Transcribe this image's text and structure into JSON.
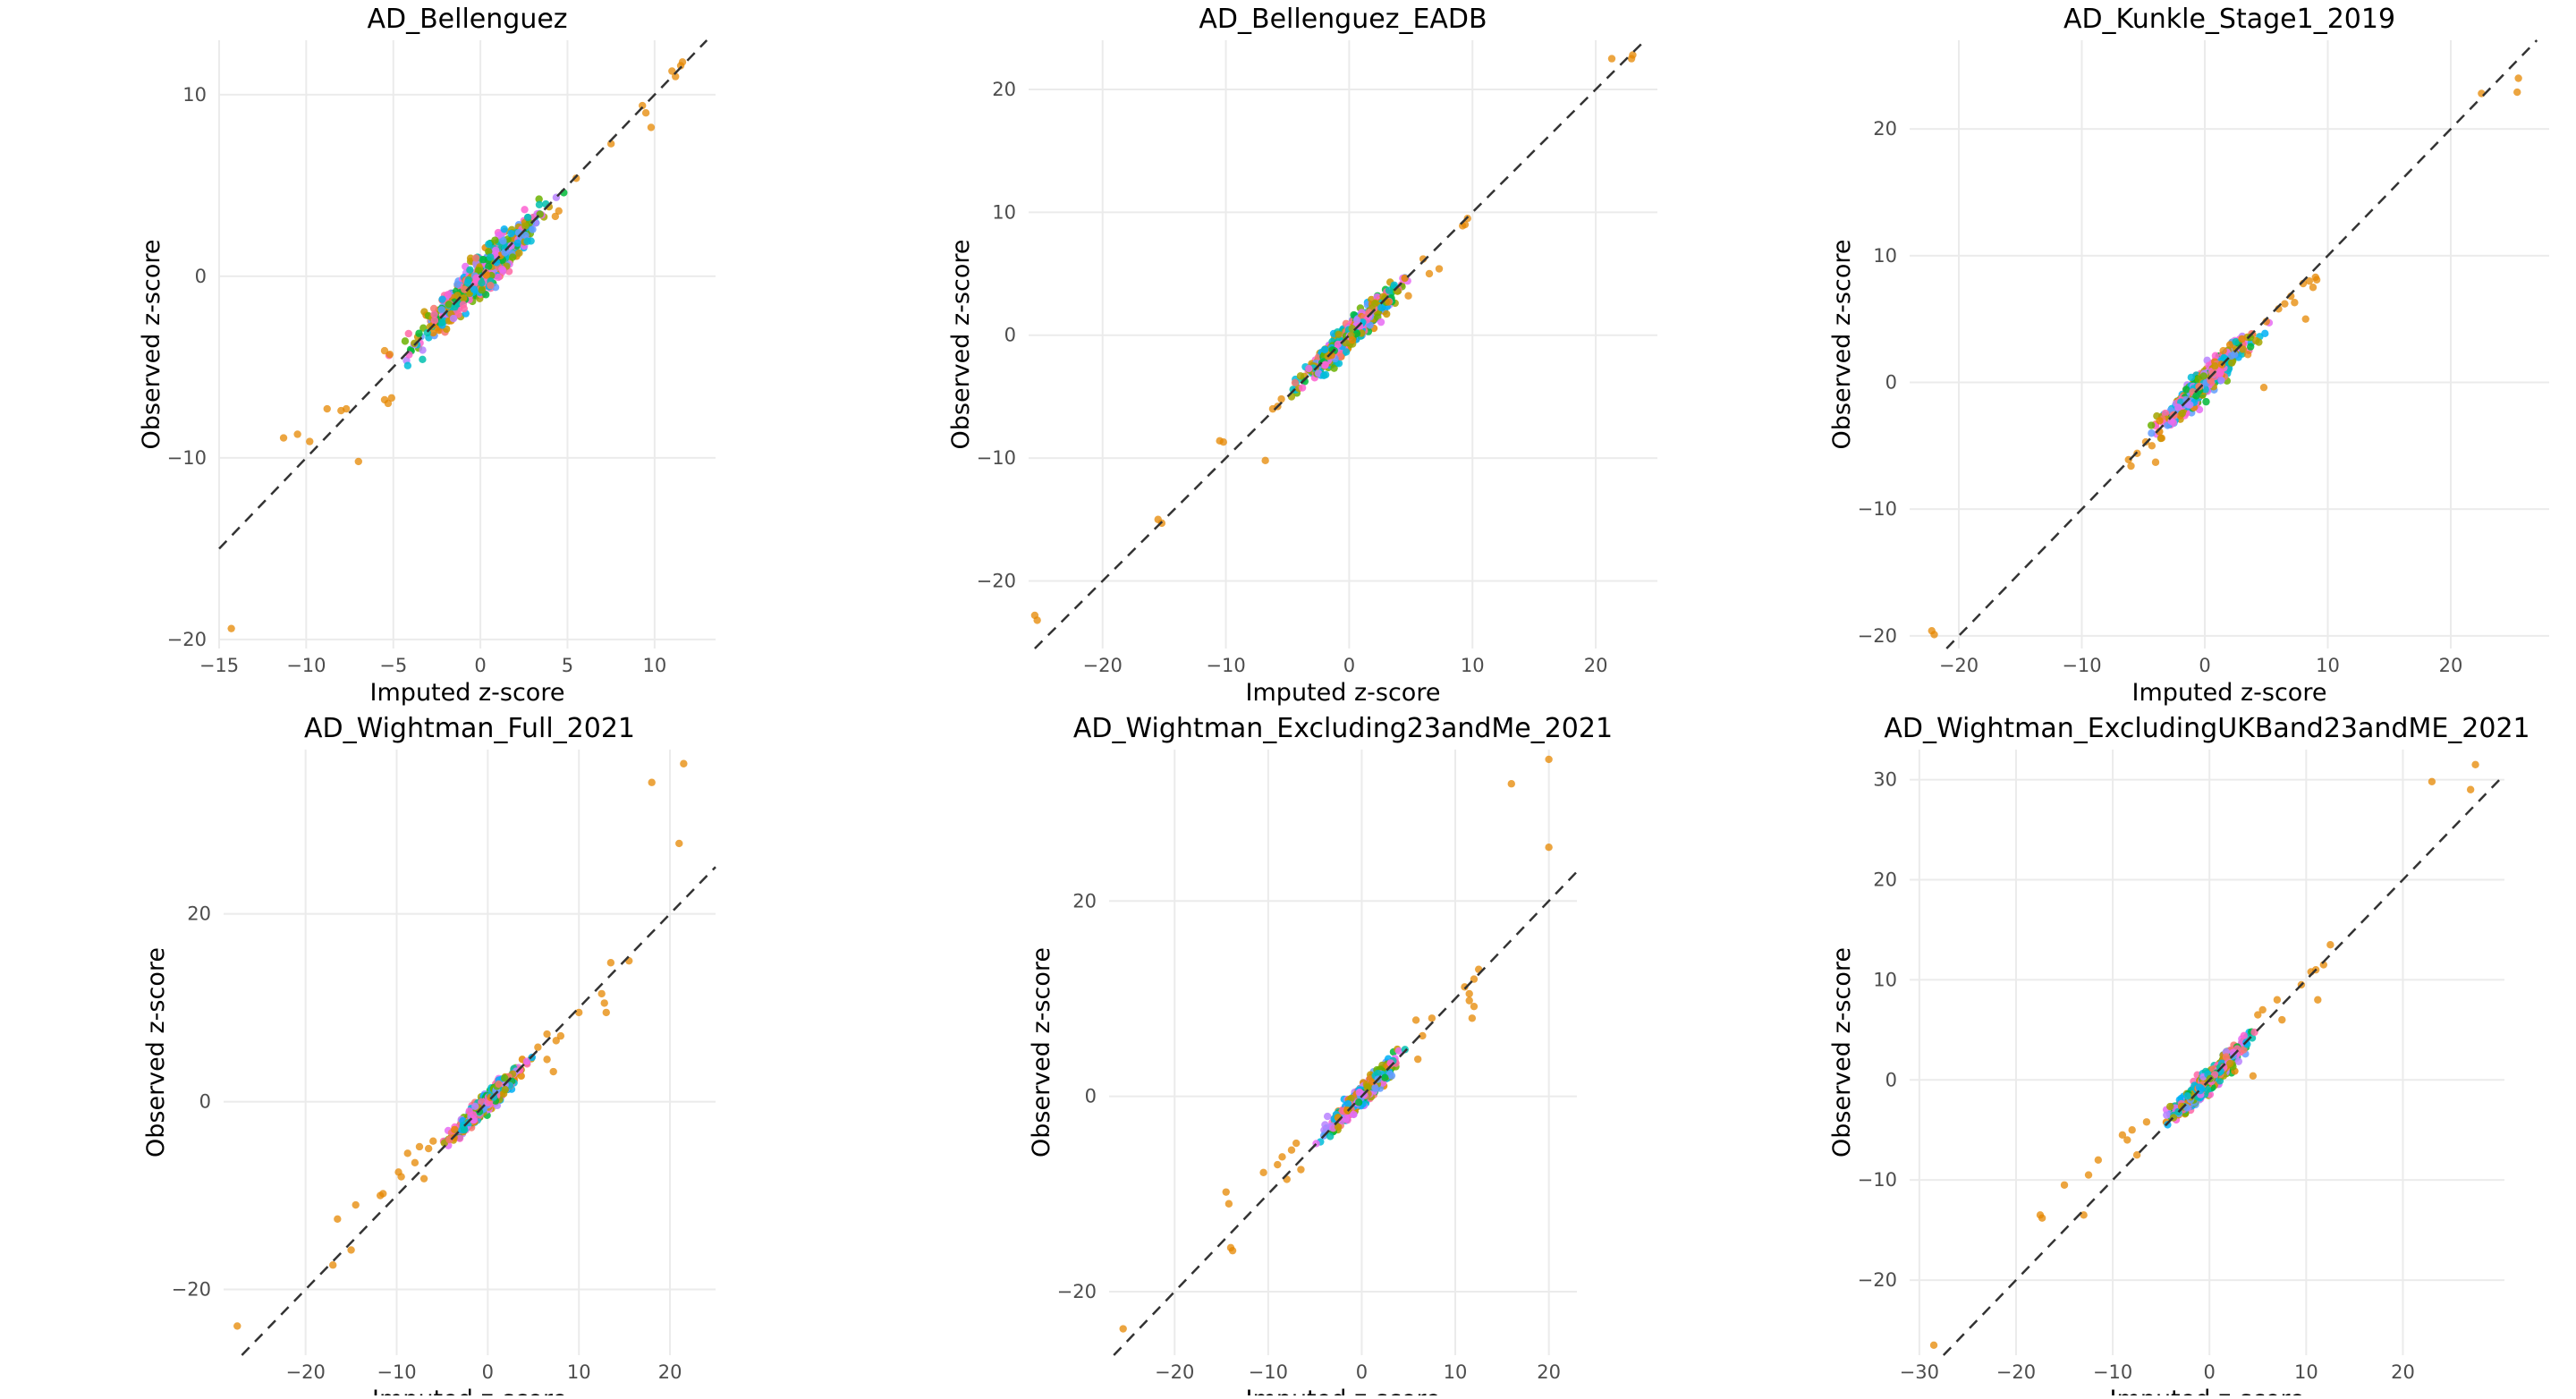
{
  "chart_data": [
    {
      "type": "scatter",
      "title": "AD_Bellenguez",
      "xlabel": "Imputed z-score",
      "ylabel": "Observed z-score",
      "xlim": [
        -15,
        13.5
      ],
      "ylim": [
        -20.5,
        13
      ],
      "xticks": [
        -15,
        -10,
        -5,
        0,
        5,
        10
      ],
      "yticks": [
        -20,
        -10,
        0,
        10
      ],
      "grid": true,
      "reference_line": "y = x (dashed)",
      "color_groups": [
        "#E58700",
        "#C99800",
        "#A3A500",
        "#6BB100",
        "#00BA38",
        "#00C0AF",
        "#00BCD8",
        "#00B0F6",
        "#619CFF",
        "#B983FF",
        "#E76BF3",
        "#FD61D1",
        "#FF67A4",
        "#F8766D"
      ],
      "outliers": [
        {
          "x": -14.3,
          "y": -19.4
        },
        {
          "x": -11.3,
          "y": -8.9
        },
        {
          "x": -10.5,
          "y": -8.7
        },
        {
          "x": -9.8,
          "y": -9.1
        },
        {
          "x": -8.8,
          "y": -7.3
        },
        {
          "x": -8.0,
          "y": -7.4
        },
        {
          "x": -7.7,
          "y": -7.3
        },
        {
          "x": -7.0,
          "y": -10.2
        },
        {
          "x": -5.5,
          "y": -6.8
        },
        {
          "x": -5.3,
          "y": -7.0
        },
        {
          "x": -5.1,
          "y": -6.7
        },
        {
          "x": -5.5,
          "y": -4.1
        },
        {
          "x": -5.2,
          "y": -4.3
        },
        {
          "x": 9.3,
          "y": 9.4
        },
        {
          "x": 9.5,
          "y": 9.0
        },
        {
          "x": 9.8,
          "y": 8.2
        },
        {
          "x": 7.5,
          "y": 7.3
        },
        {
          "x": 11.0,
          "y": 11.3
        },
        {
          "x": 11.5,
          "y": 11.6
        },
        {
          "x": 11.2,
          "y": 11.0
        },
        {
          "x": 11.6,
          "y": 11.8
        },
        {
          "x": 5.5,
          "y": 5.4
        },
        {
          "x": 4.5,
          "y": 3.6
        },
        {
          "x": 4.3,
          "y": 3.3
        }
      ]
    },
    {
      "type": "scatter",
      "title": "AD_Bellenguez_EADB",
      "xlabel": "Imputed z-score",
      "ylabel": "Observed z-score",
      "xlim": [
        -26,
        25
      ],
      "ylim": [
        -25.5,
        24
      ],
      "xticks": [
        -20,
        -10,
        0,
        10,
        20
      ],
      "yticks": [
        -20,
        -10,
        0,
        10,
        20
      ],
      "grid": true,
      "reference_line": "y = x (dashed)",
      "color_groups": [
        "#E58700",
        "#C99800",
        "#A3A500",
        "#6BB100",
        "#00BA38",
        "#00C0AF",
        "#00BCD8",
        "#00B0F6",
        "#619CFF",
        "#B983FF",
        "#E76BF3",
        "#FD61D1",
        "#FF67A4",
        "#F8766D"
      ],
      "outliers": [
        {
          "x": -25.5,
          "y": -22.8
        },
        {
          "x": -25.3,
          "y": -23.2
        },
        {
          "x": -15.5,
          "y": -15.0
        },
        {
          "x": -15.2,
          "y": -15.3
        },
        {
          "x": -10.5,
          "y": -8.6
        },
        {
          "x": -10.2,
          "y": -8.7
        },
        {
          "x": -6.8,
          "y": -10.2
        },
        {
          "x": -5.8,
          "y": -5.8
        },
        {
          "x": -6.2,
          "y": -6.0
        },
        {
          "x": -5.5,
          "y": -5.2
        },
        {
          "x": 6.0,
          "y": 6.2
        },
        {
          "x": 6.5,
          "y": 5.0
        },
        {
          "x": 7.3,
          "y": 5.4
        },
        {
          "x": 9.6,
          "y": 9.5
        },
        {
          "x": 9.4,
          "y": 9.0
        },
        {
          "x": 9.2,
          "y": 8.9
        },
        {
          "x": 21.3,
          "y": 22.5
        },
        {
          "x": 22.9,
          "y": 22.5
        },
        {
          "x": 23.0,
          "y": 22.8
        },
        {
          "x": 4.8,
          "y": 3.2
        },
        {
          "x": 3.2,
          "y": 2.7
        }
      ]
    },
    {
      "type": "scatter",
      "title": "AD_Kunkle_Stage1_2019",
      "xlabel": "Imputed z-score",
      "ylabel": "Observed z-score",
      "xlim": [
        -24,
        28
      ],
      "ylim": [
        -21,
        27
      ],
      "xticks": [
        -20,
        -10,
        0,
        10,
        20
      ],
      "yticks": [
        -20,
        -10,
        0,
        10,
        20
      ],
      "grid": true,
      "reference_line": "y = x (dashed)",
      "color_groups": [
        "#E58700",
        "#C99800",
        "#A3A500",
        "#6BB100",
        "#00BA38",
        "#00C0AF",
        "#00BCD8",
        "#00B0F6",
        "#619CFF",
        "#B983FF",
        "#E76BF3",
        "#FD61D1",
        "#FF67A4",
        "#F8766D"
      ],
      "outliers": [
        {
          "x": -22.2,
          "y": -19.6
        },
        {
          "x": -22.0,
          "y": -19.9
        },
        {
          "x": -6.2,
          "y": -6.1
        },
        {
          "x": -6.0,
          "y": -6.6
        },
        {
          "x": -5.5,
          "y": -5.6
        },
        {
          "x": -4.8,
          "y": -4.7
        },
        {
          "x": -4.0,
          "y": -6.3
        },
        {
          "x": -4.3,
          "y": -5.0
        },
        {
          "x": -3.5,
          "y": -4.4
        },
        {
          "x": 4.8,
          "y": -0.4
        },
        {
          "x": 5.0,
          "y": 4.8
        },
        {
          "x": 6.0,
          "y": 5.8
        },
        {
          "x": 6.5,
          "y": 6.2
        },
        {
          "x": 7.0,
          "y": 6.8
        },
        {
          "x": 7.3,
          "y": 6.3
        },
        {
          "x": 8.0,
          "y": 7.8
        },
        {
          "x": 8.5,
          "y": 8.0
        },
        {
          "x": 9.0,
          "y": 8.3
        },
        {
          "x": 8.8,
          "y": 7.5
        },
        {
          "x": 8.2,
          "y": 5.0
        },
        {
          "x": 9.1,
          "y": 8.1
        },
        {
          "x": 22.5,
          "y": 22.8
        },
        {
          "x": 25.5,
          "y": 24.0
        },
        {
          "x": 25.4,
          "y": 22.9
        },
        {
          "x": 1.5,
          "y": 2.5
        },
        {
          "x": 3.5,
          "y": 2.2
        }
      ]
    },
    {
      "type": "scatter",
      "title": "AD_Wightman_Full_2021",
      "xlabel": "Imputed z-score",
      "ylabel": "Observed z-score",
      "xlim": [
        -29,
        25
      ],
      "ylim": [
        -27,
        37.5
      ],
      "xticks": [
        -20,
        -10,
        0,
        10,
        20
      ],
      "yticks": [
        -20,
        0,
        20
      ],
      "grid": true,
      "reference_line": "y = x (dashed)",
      "color_groups": [
        "#E58700",
        "#C99800",
        "#A3A500",
        "#6BB100",
        "#00BA38",
        "#00C0AF",
        "#00BCD8",
        "#00B0F6",
        "#619CFF",
        "#B983FF",
        "#E76BF3",
        "#FD61D1",
        "#FF67A4",
        "#F8766D"
      ],
      "outliers": [
        {
          "x": -27.5,
          "y": -23.9
        },
        {
          "x": -17.0,
          "y": -17.4
        },
        {
          "x": -16.5,
          "y": -12.5
        },
        {
          "x": -15.0,
          "y": -15.8
        },
        {
          "x": -14.5,
          "y": -11.0
        },
        {
          "x": -11.8,
          "y": -10.0
        },
        {
          "x": -11.5,
          "y": -9.8
        },
        {
          "x": -9.8,
          "y": -7.5
        },
        {
          "x": -9.5,
          "y": -8.0
        },
        {
          "x": -8.8,
          "y": -5.5
        },
        {
          "x": -8.0,
          "y": -6.5
        },
        {
          "x": -7.5,
          "y": -4.8
        },
        {
          "x": -7.0,
          "y": -8.2
        },
        {
          "x": -6.5,
          "y": -5.0
        },
        {
          "x": -6.0,
          "y": -4.2
        },
        {
          "x": 5.5,
          "y": 5.8
        },
        {
          "x": 6.5,
          "y": 7.2
        },
        {
          "x": 7.5,
          "y": 6.5
        },
        {
          "x": 8.0,
          "y": 7.0
        },
        {
          "x": 7.2,
          "y": 3.2
        },
        {
          "x": 10.0,
          "y": 9.5
        },
        {
          "x": 12.5,
          "y": 11.5
        },
        {
          "x": 12.8,
          "y": 10.5
        },
        {
          "x": 13.0,
          "y": 9.5
        },
        {
          "x": 13.5,
          "y": 14.8
        },
        {
          "x": 15.5,
          "y": 15.0
        },
        {
          "x": 18.0,
          "y": 34.0
        },
        {
          "x": 21.5,
          "y": 36.0
        },
        {
          "x": 21.0,
          "y": 27.5
        },
        {
          "x": 6.5,
          "y": 4.5
        }
      ]
    },
    {
      "type": "scatter",
      "title": "AD_Wightman_Excluding23andMe_2021",
      "xlabel": "Imputed z-score",
      "ylabel": "Observed z-score",
      "xlim": [
        -27,
        23
      ],
      "ylim": [
        -26.5,
        35.5
      ],
      "xticks": [
        -20,
        -10,
        0,
        10,
        20
      ],
      "yticks": [
        -20,
        0,
        20
      ],
      "grid": true,
      "reference_line": "y = x (dashed)",
      "color_groups": [
        "#E58700",
        "#C99800",
        "#A3A500",
        "#6BB100",
        "#00BA38",
        "#00C0AF",
        "#00BCD8",
        "#00B0F6",
        "#619CFF",
        "#B983FF",
        "#E76BF3",
        "#FD61D1",
        "#FF67A4",
        "#F8766D"
      ],
      "outliers": [
        {
          "x": -25.5,
          "y": -23.8
        },
        {
          "x": -14.5,
          "y": -9.8
        },
        {
          "x": -14.2,
          "y": -11.0
        },
        {
          "x": -14.0,
          "y": -15.5
        },
        {
          "x": -13.8,
          "y": -15.8
        },
        {
          "x": -10.5,
          "y": -7.8
        },
        {
          "x": -9.0,
          "y": -7.0
        },
        {
          "x": -8.5,
          "y": -6.2
        },
        {
          "x": -8.0,
          "y": -8.5
        },
        {
          "x": -7.5,
          "y": -5.5
        },
        {
          "x": -6.5,
          "y": -7.5
        },
        {
          "x": -7.0,
          "y": -4.8
        },
        {
          "x": 5.8,
          "y": 7.8
        },
        {
          "x": 6.5,
          "y": 6.2
        },
        {
          "x": 7.5,
          "y": 8.0
        },
        {
          "x": 11.0,
          "y": 11.2
        },
        {
          "x": 11.5,
          "y": 10.5
        },
        {
          "x": 11.8,
          "y": 8.0
        },
        {
          "x": 12.0,
          "y": 9.2
        },
        {
          "x": 11.5,
          "y": 9.8
        },
        {
          "x": 12.0,
          "y": 12.0
        },
        {
          "x": 12.5,
          "y": 13.0
        },
        {
          "x": 16.0,
          "y": 32.0
        },
        {
          "x": 20.0,
          "y": 34.5
        },
        {
          "x": 20.0,
          "y": 25.5
        },
        {
          "x": 6.0,
          "y": 3.8
        }
      ]
    },
    {
      "type": "scatter",
      "title": "AD_Wightman_ExcludingUKBand23andME_2021",
      "xlabel": "Imputed z-score",
      "ylabel": "Observed z-score",
      "xlim": [
        -31,
        30.5
      ],
      "ylim": [
        -27.5,
        33
      ],
      "xticks": [
        -30,
        -20,
        -10,
        0,
        10,
        20
      ],
      "yticks": [
        -20,
        -10,
        0,
        10,
        20,
        30
      ],
      "grid": true,
      "reference_line": "y = x (dashed)",
      "color_groups": [
        "#E58700",
        "#C99800",
        "#A3A500",
        "#6BB100",
        "#00BA38",
        "#00C0AF",
        "#00BCD8",
        "#00B0F6",
        "#619CFF",
        "#B983FF",
        "#E76BF3",
        "#FD61D1",
        "#FF67A4",
        "#F8766D"
      ],
      "outliers": [
        {
          "x": -28.5,
          "y": -26.5
        },
        {
          "x": -17.5,
          "y": -13.5
        },
        {
          "x": -17.3,
          "y": -13.8
        },
        {
          "x": -15.0,
          "y": -10.5
        },
        {
          "x": -13.0,
          "y": -13.5
        },
        {
          "x": -12.5,
          "y": -9.5
        },
        {
          "x": -11.5,
          "y": -8.0
        },
        {
          "x": -9.0,
          "y": -5.5
        },
        {
          "x": -8.5,
          "y": -6.0
        },
        {
          "x": -7.5,
          "y": -7.5
        },
        {
          "x": -8.0,
          "y": -5.0
        },
        {
          "x": -6.5,
          "y": -4.2
        },
        {
          "x": 4.5,
          "y": 0.4
        },
        {
          "x": 5.0,
          "y": 6.5
        },
        {
          "x": 5.5,
          "y": 7.0
        },
        {
          "x": 7.0,
          "y": 8.0
        },
        {
          "x": 9.5,
          "y": 9.5
        },
        {
          "x": 10.5,
          "y": 10.8
        },
        {
          "x": 11.0,
          "y": 11.0
        },
        {
          "x": 11.2,
          "y": 8.0
        },
        {
          "x": 11.8,
          "y": 11.5
        },
        {
          "x": 12.5,
          "y": 13.5
        },
        {
          "x": 7.5,
          "y": 6.0
        },
        {
          "x": 23.0,
          "y": 29.8
        },
        {
          "x": 27.5,
          "y": 31.5
        },
        {
          "x": 27.0,
          "y": 29.0
        }
      ]
    }
  ]
}
